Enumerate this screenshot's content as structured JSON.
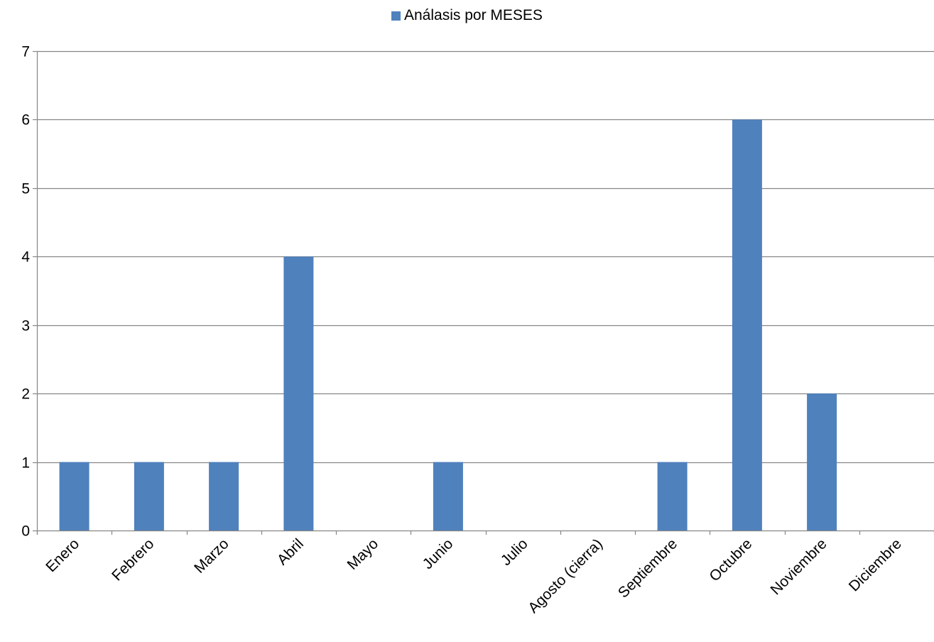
{
  "chart_data": {
    "type": "bar",
    "title": "",
    "xlabel": "",
    "ylabel": "",
    "categories": [
      "Enero",
      "Febrero",
      "Marzo",
      "Abril",
      "Mayo",
      "Junio",
      "Julio",
      "Agosto (cierra)",
      "Septiembre",
      "Octubre",
      "Noviembre",
      "Diciembre"
    ],
    "series": [
      {
        "name": "Análasis por MESES",
        "values": [
          1,
          1,
          1,
          4,
          0,
          1,
          0,
          0,
          1,
          6,
          2,
          0
        ],
        "color": "#4F81BD"
      }
    ],
    "ylim": [
      0,
      7
    ],
    "yticks": [
      0,
      1,
      2,
      3,
      4,
      5,
      6,
      7
    ],
    "grid": true,
    "legend_position": "top"
  }
}
